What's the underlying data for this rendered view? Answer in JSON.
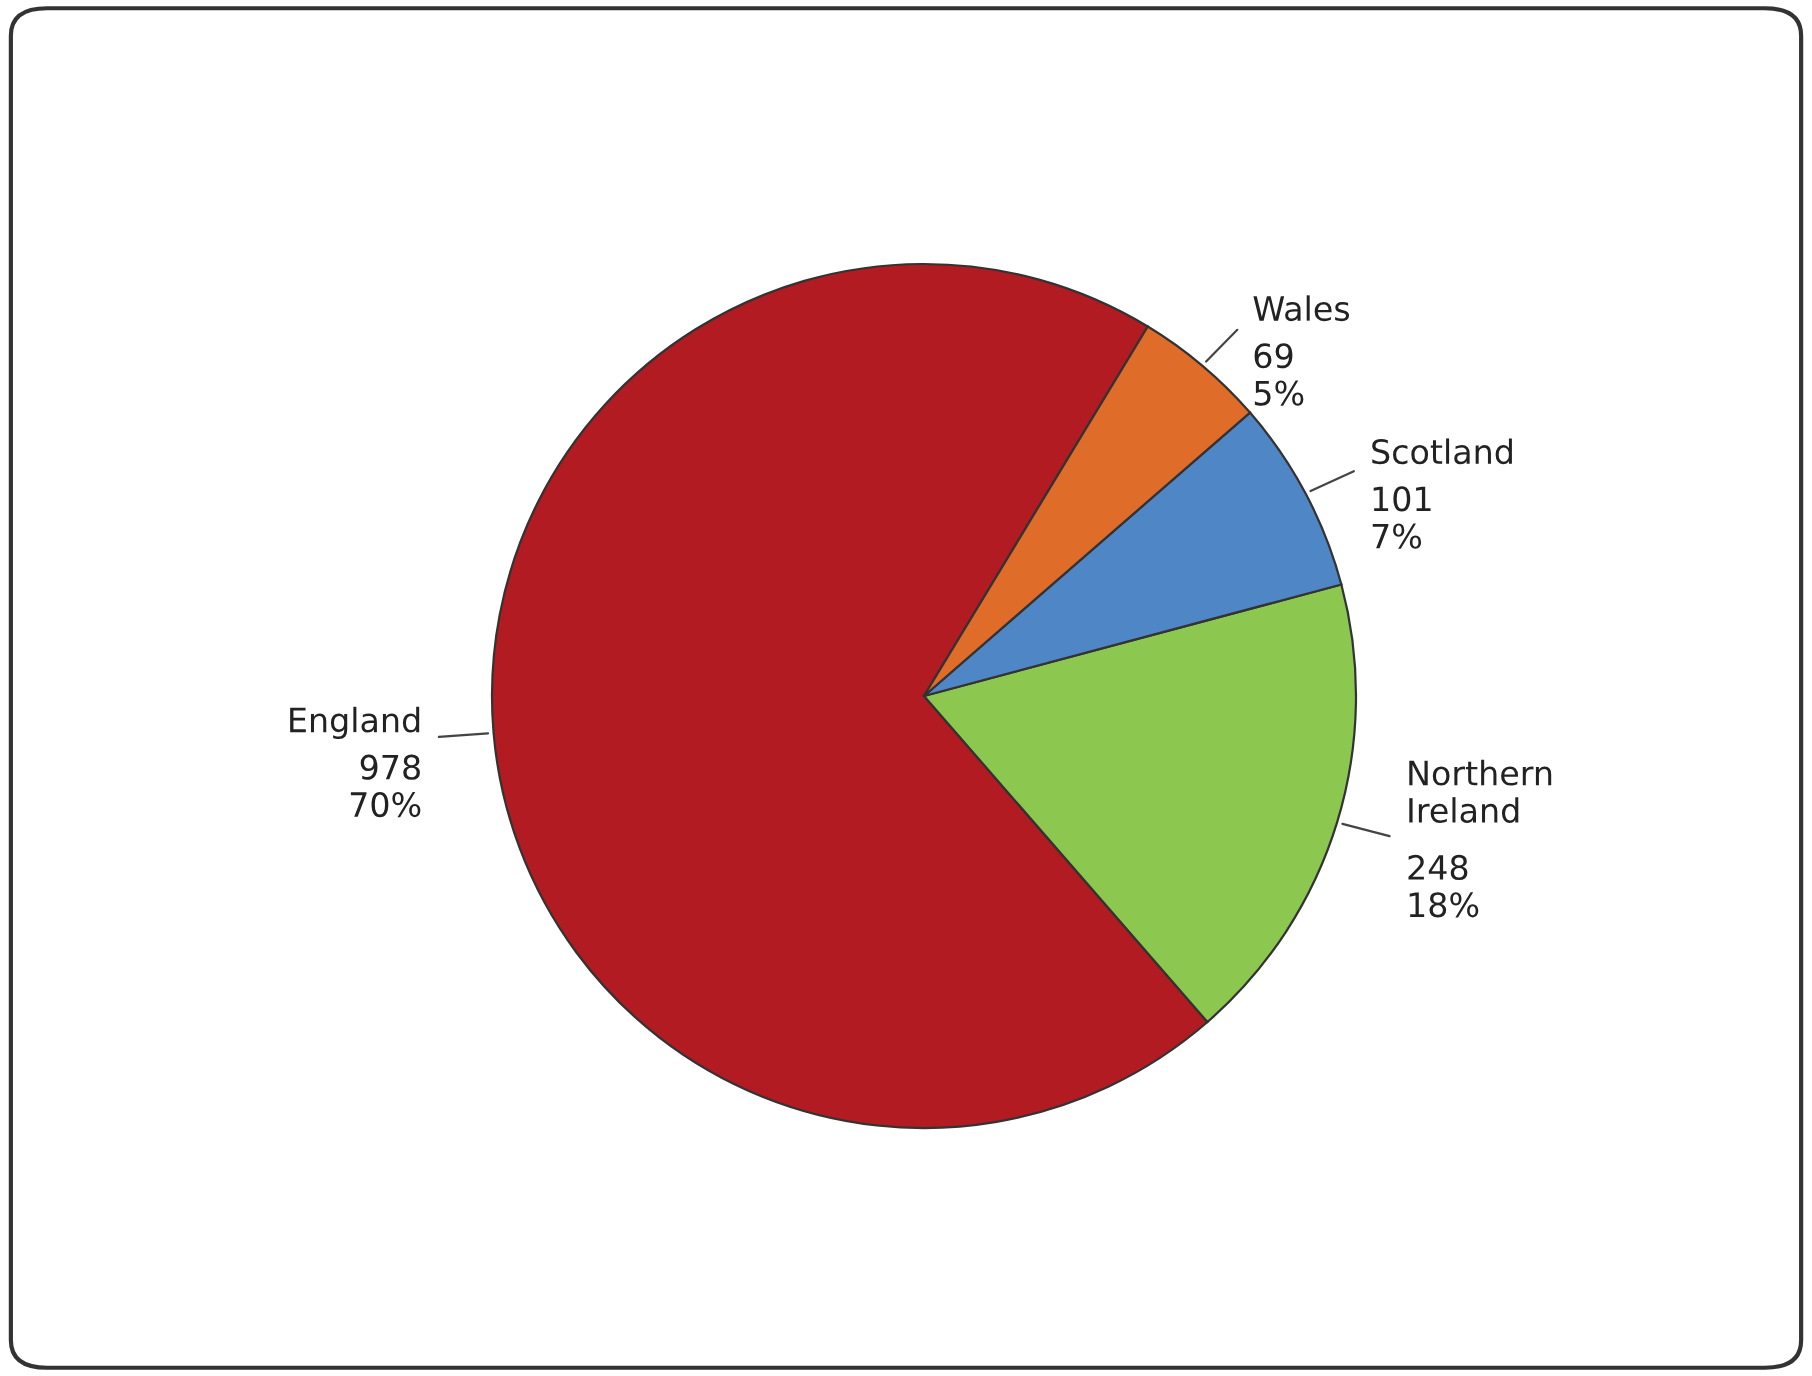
{
  "chart_data": {
    "type": "pie",
    "categories": [
      "England",
      "Northern Ireland",
      "Scotland",
      "Wales"
    ],
    "values": [
      978,
      248,
      101,
      69
    ],
    "colors": [
      "#b31b22",
      "#8cc850",
      "#4f86c6",
      "#e06c2a"
    ],
    "value_labels": [
      "978\n70%",
      "248\n18%",
      "101\n7%",
      "69\n5%"
    ],
    "legend": false
  }
}
